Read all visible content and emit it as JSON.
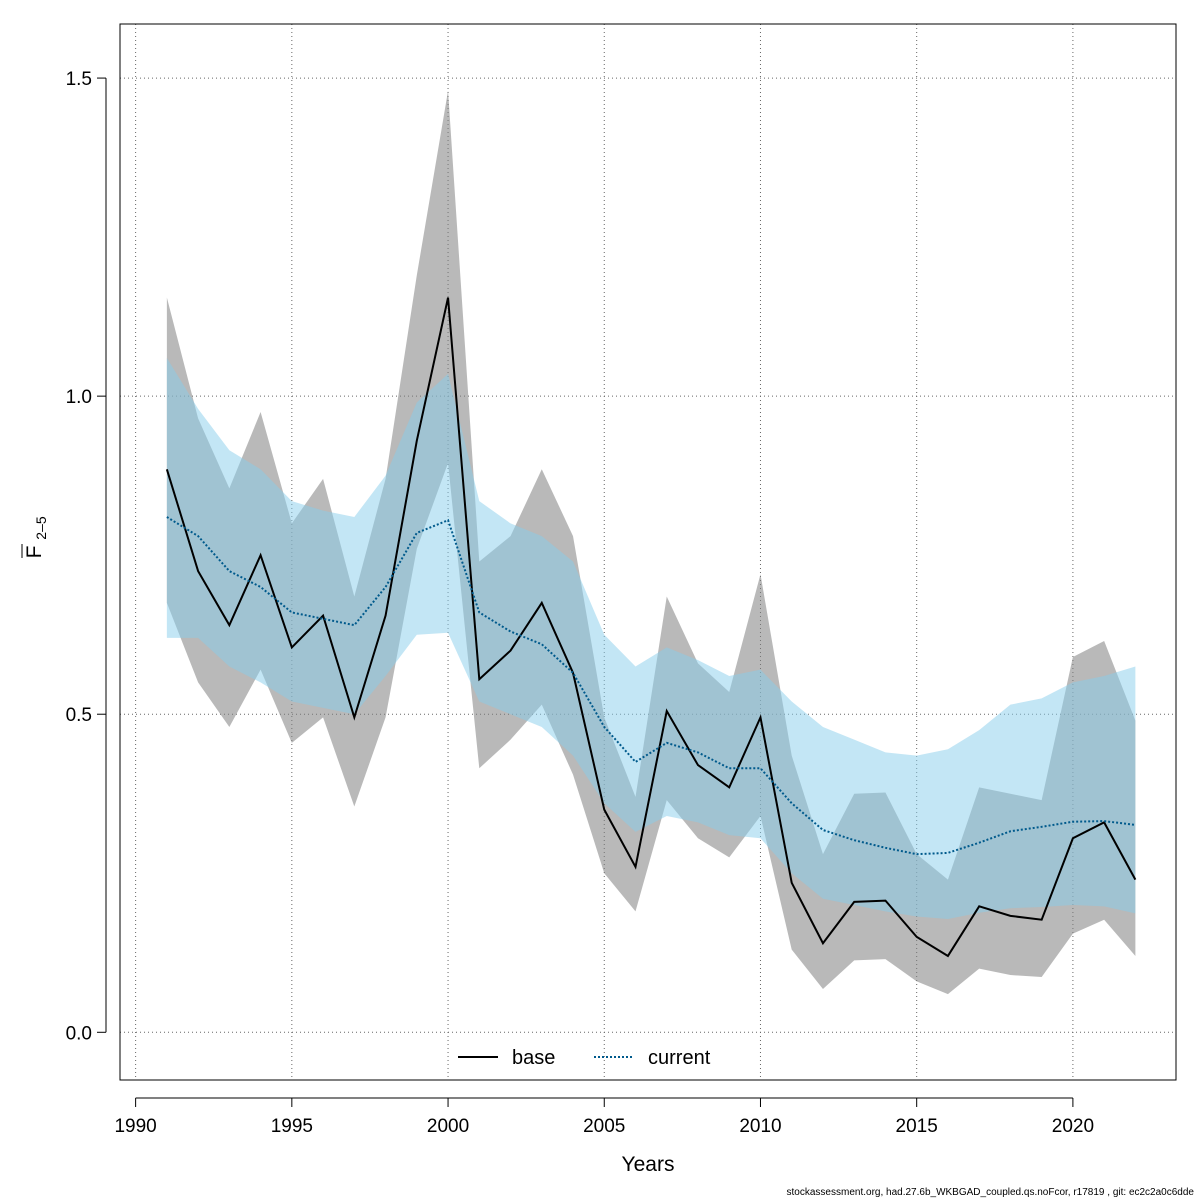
{
  "chart_data": {
    "type": "line",
    "xlabel": "Years",
    "ylabel": {
      "main": "F",
      "sub": "2–5"
    },
    "xlim": [
      1989.5,
      2023.3
    ],
    "ylim": [
      -0.075,
      1.585
    ],
    "xticks": [
      "1990",
      "1995",
      "2000",
      "2005",
      "2010",
      "2015",
      "2020"
    ],
    "yticks": [
      "0.0",
      "0.5",
      "1.0",
      "1.5"
    ],
    "grid": true,
    "legend_position": "bottom-center",
    "x": [
      1991,
      1992,
      1993,
      1994,
      1995,
      1996,
      1997,
      1998,
      1999,
      2000,
      2001,
      2002,
      2003,
      2004,
      2005,
      2006,
      2007,
      2008,
      2009,
      2010,
      2011,
      2012,
      2013,
      2014,
      2015,
      2016,
      2017,
      2018,
      2019,
      2020,
      2021,
      2022
    ],
    "series": [
      {
        "name": "base",
        "color": "#000000",
        "line_style": "solid",
        "band_color": "#808080",
        "values": [
          0.885,
          0.725,
          0.64,
          0.75,
          0.605,
          0.655,
          0.495,
          0.655,
          0.93,
          1.155,
          0.555,
          0.6,
          0.675,
          0.565,
          0.35,
          0.26,
          0.505,
          0.42,
          0.385,
          0.495,
          0.235,
          0.14,
          0.205,
          0.207,
          0.15,
          0.12,
          0.198,
          0.183,
          0.177,
          0.305,
          0.33,
          0.24
        ],
        "lower": [
          0.675,
          0.55,
          0.48,
          0.57,
          0.455,
          0.495,
          0.355,
          0.495,
          0.76,
          0.895,
          0.415,
          0.46,
          0.515,
          0.405,
          0.25,
          0.19,
          0.365,
          0.305,
          0.275,
          0.34,
          0.13,
          0.068,
          0.113,
          0.115,
          0.08,
          0.06,
          0.1,
          0.09,
          0.087,
          0.155,
          0.177,
          0.12
        ],
        "upper": [
          1.155,
          0.965,
          0.855,
          0.975,
          0.8,
          0.87,
          0.685,
          0.87,
          1.19,
          1.48,
          0.74,
          0.78,
          0.885,
          0.78,
          0.495,
          0.37,
          0.685,
          0.58,
          0.535,
          0.72,
          0.435,
          0.28,
          0.375,
          0.377,
          0.28,
          0.24,
          0.385,
          0.375,
          0.365,
          0.59,
          0.615,
          0.49
        ]
      },
      {
        "name": "current",
        "color": "#005A8C",
        "line_style": "dotted",
        "band_color": "#87CEEB",
        "values": [
          0.81,
          0.78,
          0.725,
          0.7,
          0.66,
          0.65,
          0.64,
          0.7,
          0.785,
          0.805,
          0.66,
          0.63,
          0.61,
          0.565,
          0.48,
          0.425,
          0.455,
          0.44,
          0.415,
          0.415,
          0.36,
          0.318,
          0.302,
          0.29,
          0.28,
          0.282,
          0.298,
          0.316,
          0.323,
          0.331,
          0.332,
          0.326
        ],
        "lower": [
          0.62,
          0.62,
          0.575,
          0.55,
          0.52,
          0.51,
          0.5,
          0.56,
          0.625,
          0.628,
          0.52,
          0.5,
          0.48,
          0.435,
          0.36,
          0.315,
          0.34,
          0.33,
          0.31,
          0.305,
          0.25,
          0.21,
          0.2,
          0.19,
          0.182,
          0.178,
          0.188,
          0.195,
          0.197,
          0.2,
          0.198,
          0.187
        ],
        "upper": [
          1.06,
          0.98,
          0.915,
          0.885,
          0.835,
          0.82,
          0.81,
          0.875,
          0.99,
          1.035,
          0.835,
          0.8,
          0.78,
          0.74,
          0.625,
          0.575,
          0.605,
          0.585,
          0.56,
          0.57,
          0.52,
          0.48,
          0.46,
          0.44,
          0.435,
          0.445,
          0.475,
          0.515,
          0.525,
          0.55,
          0.56,
          0.575
        ]
      }
    ]
  },
  "footer": "stockassessment.org, had.27.6b_WKBGAD_coupled.qs.noFcor, r17819 , git: ec2c2a0c6dde"
}
